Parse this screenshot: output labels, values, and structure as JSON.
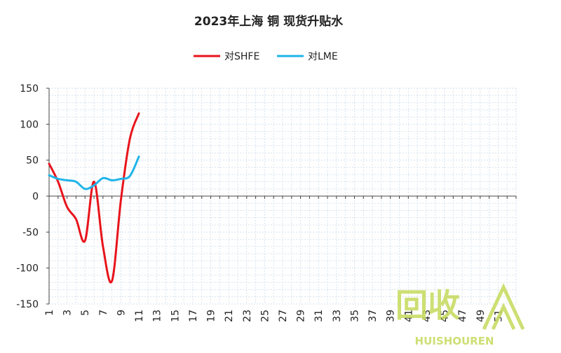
{
  "chart_data": {
    "type": "line",
    "title": "2023年上海 铜 现货升贴水",
    "xlabel": "",
    "ylabel": "",
    "ylim": [
      -150,
      150
    ],
    "yticks": [
      150,
      100,
      50,
      0,
      -50,
      -100,
      -150
    ],
    "xlim": [
      1,
      53
    ],
    "xticks": [
      1,
      3,
      5,
      7,
      9,
      11,
      13,
      15,
      17,
      19,
      21,
      23,
      25,
      27,
      29,
      31,
      33,
      35,
      37,
      39,
      41,
      43,
      45,
      47,
      49,
      51
    ],
    "grid": true,
    "legend_position": "top-center",
    "series": [
      {
        "name": "对SHFE",
        "color": "#e8141b",
        "points": [
          [
            1,
            45
          ],
          [
            2,
            20
          ],
          [
            3,
            -15
          ],
          [
            4,
            -32
          ],
          [
            5,
            -62
          ],
          [
            6,
            20
          ],
          [
            7,
            -70
          ],
          [
            8,
            -118
          ],
          [
            9,
            -5
          ],
          [
            10,
            80
          ],
          [
            11,
            115
          ]
        ]
      },
      {
        "name": "对LME",
        "color": "#1fb4e8",
        "points": [
          [
            1,
            29
          ],
          [
            2,
            24
          ],
          [
            3,
            22
          ],
          [
            4,
            20
          ],
          [
            5,
            10
          ],
          [
            6,
            15
          ],
          [
            7,
            25
          ],
          [
            8,
            22
          ],
          [
            9,
            24
          ],
          [
            10,
            28
          ],
          [
            11,
            55
          ]
        ]
      }
    ]
  },
  "watermark": {
    "text": "回收",
    "subtext": "HUISHOUREN",
    "color": "#c8dc64"
  }
}
